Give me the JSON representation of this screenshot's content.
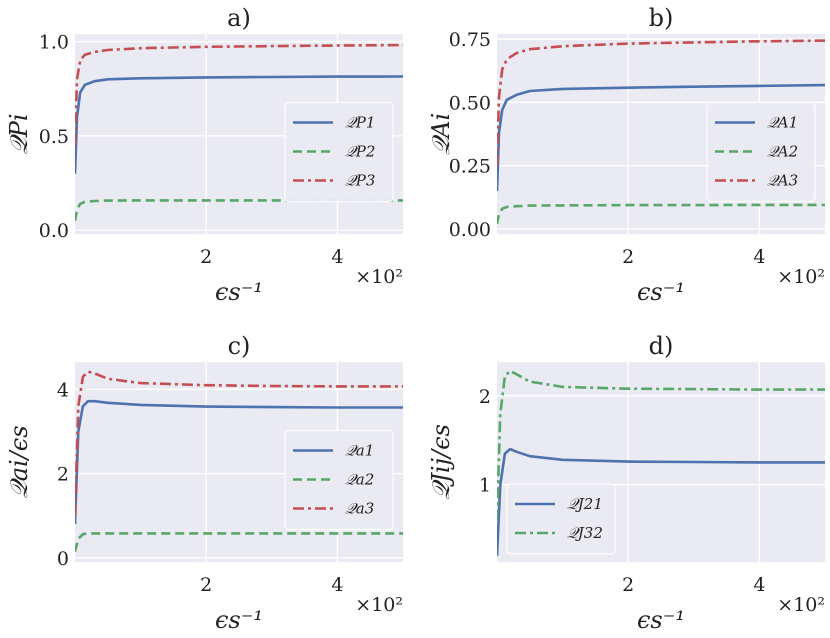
{
  "chart_data": [
    {
      "type": "line",
      "title": "a)",
      "xlabel": "ϵs⁻¹",
      "ylabel": "𝒬Pi",
      "x_multiplier": "×10²",
      "xlim": [
        0,
        5
      ],
      "ylim": [
        -0.02,
        1.04
      ],
      "xticks": [
        2,
        4
      ],
      "yticks": [
        0.0,
        0.5,
        1.0
      ],
      "ytick_labels": [
        "0.0",
        "0.5",
        "1.0"
      ],
      "legend_position": "center-right",
      "series": [
        {
          "name": "𝒬P1",
          "color": "#4c72b0",
          "style": "solid",
          "x": [
            0,
            0.03,
            0.08,
            0.15,
            0.3,
            0.5,
            1.0,
            2.0,
            3.0,
            4.0,
            5.0
          ],
          "y": [
            0.3,
            0.6,
            0.73,
            0.77,
            0.79,
            0.8,
            0.805,
            0.81,
            0.812,
            0.814,
            0.815
          ]
        },
        {
          "name": "𝒬P2",
          "color": "#55a868",
          "style": "dashed",
          "x": [
            0,
            0.03,
            0.08,
            0.15,
            0.3,
            0.5,
            1.0,
            2.0,
            3.0,
            4.0,
            5.0
          ],
          "y": [
            0.05,
            0.11,
            0.14,
            0.15,
            0.155,
            0.157,
            0.158,
            0.158,
            0.158,
            0.158,
            0.158
          ]
        },
        {
          "name": "𝒬P3",
          "color": "#c44e52",
          "style": "dashdot",
          "x": [
            0,
            0.03,
            0.08,
            0.15,
            0.3,
            0.5,
            1.0,
            2.0,
            3.0,
            4.0,
            5.0
          ],
          "y": [
            0.45,
            0.8,
            0.9,
            0.93,
            0.945,
            0.955,
            0.965,
            0.972,
            0.976,
            0.979,
            0.981
          ]
        }
      ]
    },
    {
      "type": "line",
      "title": "b)",
      "xlabel": "ϵs⁻¹",
      "ylabel": "𝒬Ai",
      "x_multiplier": "×10²",
      "xlim": [
        0,
        5
      ],
      "ylim": [
        -0.02,
        0.77
      ],
      "xticks": [
        2,
        4
      ],
      "yticks": [
        0.0,
        0.25,
        0.5,
        0.75
      ],
      "ytick_labels": [
        "0.00",
        "0.25",
        "0.50",
        "0.75"
      ],
      "legend_position": "center-right",
      "series": [
        {
          "name": "𝒬A1",
          "color": "#4c72b0",
          "style": "solid",
          "x": [
            0,
            0.03,
            0.08,
            0.15,
            0.3,
            0.5,
            1.0,
            2.0,
            3.0,
            4.0,
            5.0
          ],
          "y": [
            0.15,
            0.38,
            0.47,
            0.51,
            0.53,
            0.545,
            0.553,
            0.558,
            0.562,
            0.565,
            0.568
          ]
        },
        {
          "name": "𝒬A2",
          "color": "#55a868",
          "style": "dashed",
          "x": [
            0,
            0.03,
            0.08,
            0.15,
            0.3,
            0.5,
            1.0,
            2.0,
            3.0,
            4.0,
            5.0
          ],
          "y": [
            0.02,
            0.06,
            0.08,
            0.087,
            0.09,
            0.092,
            0.093,
            0.094,
            0.094,
            0.095,
            0.095
          ]
        },
        {
          "name": "𝒬A3",
          "color": "#c44e52",
          "style": "dashdot",
          "x": [
            0,
            0.03,
            0.08,
            0.15,
            0.3,
            0.5,
            1.0,
            2.0,
            3.0,
            4.0,
            5.0
          ],
          "y": [
            0.25,
            0.52,
            0.63,
            0.67,
            0.695,
            0.71,
            0.722,
            0.732,
            0.737,
            0.741,
            0.744
          ]
        }
      ]
    },
    {
      "type": "line",
      "title": "c)",
      "xlabel": "ϵs⁻¹",
      "ylabel": "𝒬ai/ϵs",
      "x_multiplier": "×10²",
      "xlim": [
        0,
        5
      ],
      "ylim": [
        -0.1,
        4.65
      ],
      "xticks": [
        2,
        4
      ],
      "yticks": [
        0,
        2,
        4
      ],
      "ytick_labels": [
        "0",
        "2",
        "4"
      ],
      "legend_position": "center-right",
      "series": [
        {
          "name": "𝒬a1",
          "color": "#4c72b0",
          "style": "solid",
          "x": [
            0,
            0.05,
            0.12,
            0.2,
            0.3,
            0.5,
            1.0,
            2.0,
            3.0,
            4.0,
            5.0
          ],
          "y": [
            0.8,
            3.0,
            3.6,
            3.72,
            3.72,
            3.68,
            3.63,
            3.59,
            3.58,
            3.57,
            3.57
          ]
        },
        {
          "name": "𝒬a2",
          "color": "#55a868",
          "style": "dashed",
          "x": [
            0,
            0.05,
            0.12,
            0.2,
            0.3,
            0.5,
            1.0,
            2.0,
            3.0,
            4.0,
            5.0
          ],
          "y": [
            0.15,
            0.45,
            0.56,
            0.58,
            0.58,
            0.58,
            0.58,
            0.58,
            0.58,
            0.58,
            0.58
          ]
        },
        {
          "name": "𝒬a3",
          "color": "#c44e52",
          "style": "dashdot",
          "x": [
            0,
            0.05,
            0.12,
            0.2,
            0.3,
            0.5,
            1.0,
            2.0,
            3.0,
            4.0,
            5.0
          ],
          "y": [
            1.0,
            3.6,
            4.3,
            4.42,
            4.38,
            4.25,
            4.15,
            4.1,
            4.08,
            4.07,
            4.07
          ]
        }
      ]
    },
    {
      "type": "line",
      "title": "d)",
      "xlabel": "ϵs⁻¹",
      "ylabel": "𝒬Jij/ϵs",
      "x_multiplier": "×10²",
      "xlim": [
        0,
        5
      ],
      "ylim": [
        0.13,
        2.38
      ],
      "xticks": [
        2,
        4
      ],
      "yticks": [
        1,
        2
      ],
      "ytick_labels": [
        "1",
        "2"
      ],
      "legend_position": "lower-left",
      "series": [
        {
          "name": "𝒬J21",
          "color": "#4c72b0",
          "style": "solid",
          "x": [
            0,
            0.05,
            0.12,
            0.2,
            0.3,
            0.5,
            1.0,
            2.0,
            3.0,
            4.0,
            5.0
          ],
          "y": [
            0.2,
            1.0,
            1.35,
            1.4,
            1.37,
            1.32,
            1.28,
            1.26,
            1.255,
            1.25,
            1.25
          ]
        },
        {
          "name": "𝒬J32",
          "color": "#55a868",
          "style": "dashdot",
          "x": [
            0,
            0.05,
            0.12,
            0.2,
            0.3,
            0.5,
            1.0,
            2.0,
            3.0,
            4.0,
            5.0
          ],
          "y": [
            0.6,
            1.8,
            2.22,
            2.28,
            2.24,
            2.16,
            2.1,
            2.08,
            2.075,
            2.07,
            2.07
          ]
        }
      ]
    }
  ]
}
